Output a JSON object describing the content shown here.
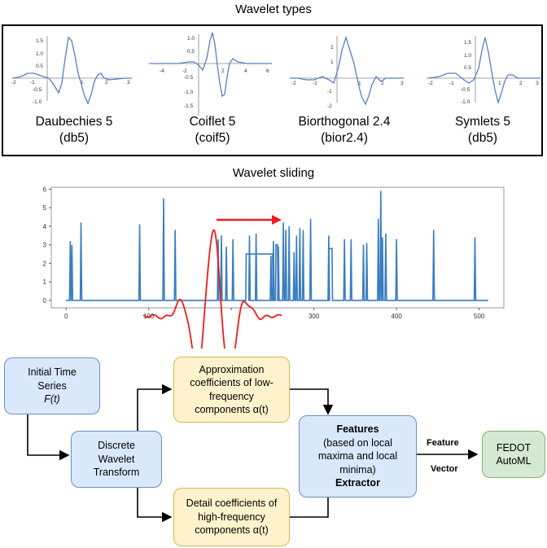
{
  "top_title": "Wavelet types",
  "wavelets": [
    {
      "name": "Daubechies 5",
      "code": "(db5)",
      "x_ticks": [
        "-2",
        "-1",
        "1",
        "2",
        "3"
      ],
      "y_ticks": [
        "1.5",
        "1.0",
        "0.5",
        "-0.5",
        "-1.0"
      ]
    },
    {
      "name": "Coiflet 5",
      "code": "(coif5)",
      "x_ticks": [
        "-4",
        "-2",
        "2",
        "4",
        "6"
      ],
      "y_ticks": [
        "1.0",
        "0.5",
        "-0.5",
        "-1.0",
        "-1.5"
      ]
    },
    {
      "name": "Biorthogonal 2.4",
      "code": "(bior2.4)",
      "x_ticks": [
        "-2",
        "-1",
        "1",
        "2",
        "3"
      ],
      "y_ticks": [
        "2",
        "1",
        "-1",
        "-2"
      ]
    },
    {
      "name": "Symlets 5",
      "code": "(db5)",
      "x_ticks": [
        "-2",
        "-1",
        "1",
        "2",
        "3"
      ],
      "y_ticks": [
        "1.5",
        "1.0",
        "0.5",
        "-0.5",
        "-1.0"
      ]
    }
  ],
  "middle_title": "Wavelet sliding",
  "chart_data": {
    "type": "line",
    "title": "",
    "xlim": [
      -18,
      530
    ],
    "ylim": [
      -0.4,
      6.1
    ],
    "x_ticks": [
      0,
      100,
      200,
      300,
      400,
      500
    ],
    "y_ticks": [
      0,
      1,
      2,
      3,
      4,
      5,
      6
    ],
    "x_tick_labels": [
      "0",
      "100",
      "",
      "300",
      "400",
      "500"
    ],
    "grid": false,
    "series": [
      {
        "color": "#3a7dc0",
        "spikes": [
          {
            "x": 5,
            "y": 3.2
          },
          {
            "x": 7,
            "y": 3.0
          },
          {
            "x": 18,
            "y": 4.2
          },
          {
            "x": 89,
            "y": 4.1
          },
          {
            "x": 118,
            "y": 5.5
          },
          {
            "x": 132,
            "y": 3.8
          },
          {
            "x": 184,
            "y": 3.3
          },
          {
            "x": 188,
            "y": 3.5
          },
          {
            "x": 194,
            "y": 2.9
          },
          {
            "x": 202,
            "y": 3.3
          },
          {
            "x": 222,
            "y": 3.5
          },
          {
            "x": 230,
            "y": 3.6
          },
          {
            "x": 248,
            "y": 2.4
          },
          {
            "x": 251,
            "y": 3.2
          },
          {
            "x": 257,
            "y": 2.9
          },
          {
            "x": 263,
            "y": 4.2
          },
          {
            "x": 266,
            "y": 3.8
          },
          {
            "x": 270,
            "y": 4.0
          },
          {
            "x": 276,
            "y": 2.6
          },
          {
            "x": 279,
            "y": 3.5
          },
          {
            "x": 283,
            "y": 3.9
          },
          {
            "x": 287,
            "y": 3.8
          },
          {
            "x": 296,
            "y": 4.4
          },
          {
            "x": 318,
            "y": 3.5
          },
          {
            "x": 337,
            "y": 3.3
          },
          {
            "x": 345,
            "y": 3.3
          },
          {
            "x": 360,
            "y": 3.0
          },
          {
            "x": 364,
            "y": 3.1
          },
          {
            "x": 378,
            "y": 4.4
          },
          {
            "x": 381,
            "y": 5.9
          },
          {
            "x": 383,
            "y": 3.4
          },
          {
            "x": 387,
            "y": 3.6
          },
          {
            "x": 400,
            "y": 3.3
          },
          {
            "x": 445,
            "y": 3.8
          },
          {
            "x": 495,
            "y": 3.4
          }
        ],
        "plateaus": [
          {
            "from": 218,
            "to": 250,
            "y": 2.5
          },
          {
            "from": 254,
            "to": 256,
            "y": 3.0
          },
          {
            "from": 318,
            "to": 322,
            "y": 2.8
          }
        ]
      }
    ]
  },
  "slide_arrow_color": "#ee1c1c",
  "wavelet_overlay_color": "#ee1c1c",
  "flow": {
    "initial_line1": "Initial Time",
    "initial_line2": "Series",
    "initial_line3": "F(t)",
    "dwt_line1": "Discrete",
    "dwt_line2": "Wavelet",
    "dwt_line3": "Transform",
    "approx_line1": "Approximation",
    "approx_line2": "coefficients of low-",
    "approx_line3": "frequency",
    "approx_line4": "components α(t)",
    "detail_line1": "Detail coefficients of",
    "detail_line2": "high-frequency",
    "detail_line3": "components α(t)",
    "features_line1": "Features",
    "features_line2": "(based on local",
    "features_line3": "maxima and local",
    "features_line4": "minima)",
    "features_line5": "Extractor",
    "feature_label": "Feature",
    "vector_label": "Vector",
    "fedot_line1": "FEDOT",
    "fedot_line2": "AutoML"
  },
  "colors": {
    "blue_fill": "#dae8fc",
    "blue_stroke": "#6c8ebf",
    "yellow_fill": "#fff2cc",
    "yellow_stroke": "#d6b656",
    "green_fill": "#d5e8d4",
    "green_stroke": "#82b366"
  }
}
